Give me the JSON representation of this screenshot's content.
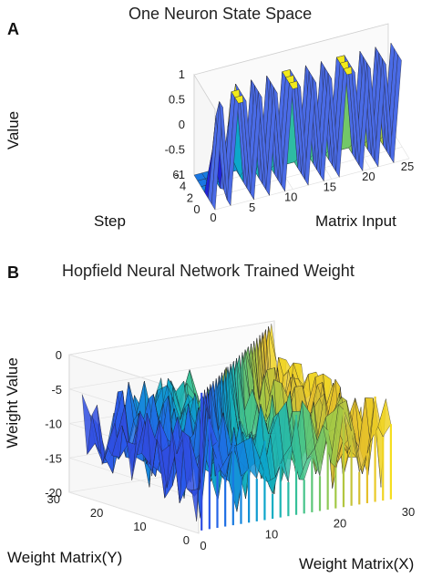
{
  "chart_data": [
    {
      "type": "surface",
      "panel_label": "A",
      "title": "One Neuron State Space",
      "xlabel": "Matrix Input",
      "ylabel": "Step",
      "zlabel": "Value",
      "x_ticks": [
        "0",
        "5",
        "10",
        "15",
        "20",
        "25"
      ],
      "y_ticks": [
        "0",
        "2",
        "4",
        "6"
      ],
      "z_ticks": [
        "1",
        "0.5",
        "0",
        "-0.5",
        "-1"
      ],
      "xlim": [
        0,
        25
      ],
      "ylim": [
        0,
        6
      ],
      "zlim": [
        -1,
        1
      ],
      "surface_rows": [
        {
          "step": 0,
          "values": [
            -1,
            1,
            -1,
            1,
            1,
            -1,
            1,
            -1,
            1,
            -1,
            1,
            1,
            -1,
            1,
            -1,
            1,
            -1,
            1,
            1,
            -1,
            1,
            -1,
            1,
            -1,
            1
          ]
        },
        {
          "step": 1,
          "values": [
            -1,
            1,
            -1,
            1,
            1,
            -1,
            1,
            -1,
            1,
            -1,
            1,
            1,
            -1,
            1,
            -1,
            1,
            -1,
            1,
            1,
            -1,
            1,
            -1,
            1,
            -1,
            1
          ]
        },
        {
          "step": 2,
          "values": [
            -1,
            0.6,
            -0.9,
            1,
            1,
            -1,
            1,
            -1,
            1,
            -1,
            1,
            1,
            -1,
            1,
            -1,
            1,
            -1,
            1,
            1,
            -1,
            1,
            -1,
            1,
            -1,
            1
          ]
        },
        {
          "step": 3,
          "values": [
            -1,
            -0.2,
            -1,
            0.2,
            1,
            -1,
            1,
            -1,
            1,
            -1,
            1,
            1,
            -1,
            1,
            -1,
            1,
            -1,
            1,
            1,
            -1,
            1,
            -1,
            1,
            -1,
            1
          ]
        },
        {
          "step": 4,
          "values": [
            -1,
            -1,
            -1,
            -1,
            -0.6,
            -1,
            -0.8,
            -1,
            -0.6,
            -1,
            -0.9,
            -1,
            -1,
            -0.9,
            -1,
            -0.9,
            -1,
            -0.9,
            -1,
            -1,
            -0.9,
            -1,
            -0.9,
            -1,
            -0.9
          ]
        },
        {
          "step": 5,
          "values": [
            -1,
            -1,
            -1,
            -1,
            -1,
            -1,
            -1,
            -1,
            -1,
            -1,
            -1,
            -1,
            -1,
            -1,
            -1,
            -1,
            -1,
            -1,
            -1,
            -1,
            -1,
            -1,
            -1,
            -1,
            -1
          ]
        },
        {
          "step": 6,
          "values": [
            -1,
            -1,
            -1,
            -1,
            -1,
            -1,
            -1,
            -1,
            -1,
            -1,
            -1,
            -1,
            -1,
            -1,
            -1,
            -1,
            -1,
            -1,
            -1,
            -1,
            -1,
            -1,
            -1,
            -1,
            -1
          ]
        }
      ],
      "colormap": "parula",
      "grid": true
    },
    {
      "type": "surface",
      "panel_label": "B",
      "title": "Hopfield Neural Network Trained Weight",
      "xlabel": "Weight Matrix(X)",
      "ylabel": "Weight Matrix(Y)",
      "zlabel": "Weight Value",
      "x_ticks": [
        "0",
        "10",
        "20",
        "30"
      ],
      "y_ticks": [
        "0",
        "10",
        "20",
        "30"
      ],
      "z_ticks": [
        "0",
        "-5",
        "-10",
        "-15",
        "-20"
      ],
      "xlim": [
        0,
        30
      ],
      "ylim": [
        0,
        30
      ],
      "zlim": [
        -20,
        0
      ],
      "weight_summary": {
        "grid_size": 25,
        "diagonal_peak": 0,
        "typical_range": [
          -20,
          -4
        ]
      },
      "colormap": "parula",
      "grid": true
    }
  ]
}
